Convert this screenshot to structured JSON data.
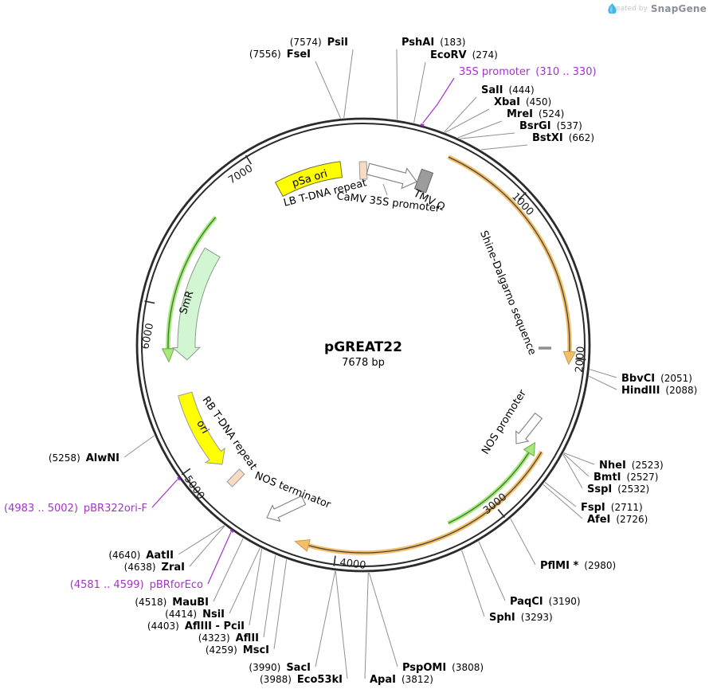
{
  "watermark": {
    "prefix": "Created by",
    "brand": "SnapGene"
  },
  "plasmid": {
    "name": "pGREAT22",
    "size": "7678 bp",
    "length_bp": 7678
  },
  "ticks": [
    "1000",
    "2000",
    "3000",
    "4000",
    "5000",
    "6000",
    "7000"
  ],
  "features": [
    {
      "label": "pSa ori"
    },
    {
      "label": "LB T-DNA repeat"
    },
    {
      "label": "CaMV 35S promoter"
    },
    {
      "label": "TMV Ω"
    },
    {
      "label": "Shine-Dalgarno sequence"
    },
    {
      "label": "NOS promoter"
    },
    {
      "label": "NOS terminator"
    },
    {
      "label": "RB T-DNA repeat"
    },
    {
      "label": "ori"
    },
    {
      "label": "SmR"
    }
  ],
  "primers": [
    {
      "label": "35S promoter",
      "loc": "(310 .. 330)"
    },
    {
      "label": "pBRforEco",
      "loc": "(4581 .. 4599)"
    },
    {
      "label": "pBR322ori-F",
      "loc": "(4983 .. 5002)"
    }
  ],
  "restriction_sites": [
    {
      "name": "FseI",
      "loc": "(7556)"
    },
    {
      "name": "PsiI",
      "loc": "(7574)"
    },
    {
      "name": "PshAI",
      "loc": "(183)"
    },
    {
      "name": "EcoRV",
      "loc": "(274)"
    },
    {
      "name": "SalI",
      "loc": "(444)"
    },
    {
      "name": "XbaI",
      "loc": "(450)"
    },
    {
      "name": "MreI",
      "loc": "(524)"
    },
    {
      "name": "BsrGI",
      "loc": "(537)"
    },
    {
      "name": "BstXI",
      "loc": "(662)"
    },
    {
      "name": "BbvCI",
      "loc": "(2051)"
    },
    {
      "name": "HindIII",
      "loc": "(2088)"
    },
    {
      "name": "NheI",
      "loc": "(2523)"
    },
    {
      "name": "BmtI",
      "loc": "(2527)"
    },
    {
      "name": "SspI",
      "loc": "(2532)"
    },
    {
      "name": "FspI",
      "loc": "(2711)"
    },
    {
      "name": "AfeI",
      "loc": "(2726)"
    },
    {
      "name": "PflMI *",
      "loc": "(2980)"
    },
    {
      "name": "PaqCI",
      "loc": "(3190)"
    },
    {
      "name": "SphI",
      "loc": "(3293)"
    },
    {
      "name": "PspOMI",
      "loc": "(3808)"
    },
    {
      "name": "ApaI",
      "loc": "(3812)"
    },
    {
      "name": "SacI",
      "loc": "(3990)"
    },
    {
      "name": "Eco53kI",
      "loc": "(3988)"
    },
    {
      "name": "MscI",
      "loc": "(4259)"
    },
    {
      "name": "AflII",
      "loc": "(4323)"
    },
    {
      "name": "AflIII - PciI",
      "loc": "(4403)"
    },
    {
      "name": "NsiI",
      "loc": "(4414)"
    },
    {
      "name": "MauBI",
      "loc": "(4518)"
    },
    {
      "name": "ZraI",
      "loc": "(4638)"
    },
    {
      "name": "AatII",
      "loc": "(4640)"
    },
    {
      "name": "AlwNI",
      "loc": "(5258)"
    }
  ],
  "colors": {
    "accent_purple": "#A333C9",
    "orange_arc": "#F2BE6A",
    "orange_line": "#4a4438",
    "green_arc": "#A9E77B",
    "green_line": "#357a35",
    "yellow": "#FFFF00",
    "light_green": "#D2F5D2",
    "peach": "#F8DCC2",
    "gray_box": "#9C9C9C",
    "ring": "#2b2b2b",
    "leader": "#909090",
    "snapgene_blue": "#41b6e6"
  }
}
